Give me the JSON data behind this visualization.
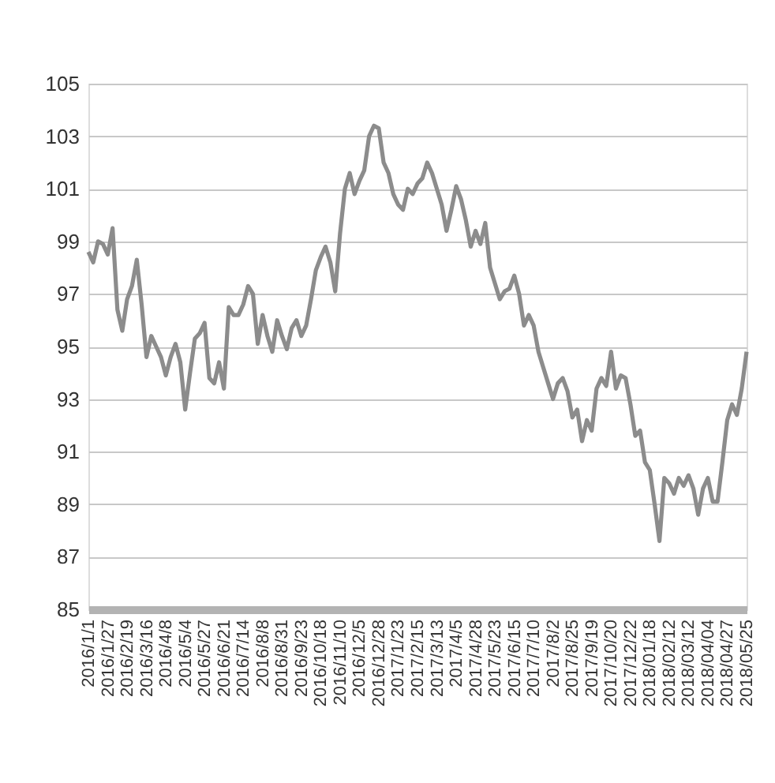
{
  "chart_data": {
    "type": "line",
    "categories": [
      "2016/1/1",
      null,
      null,
      null,
      "2016/1/27",
      null,
      null,
      null,
      "2016/2/19",
      null,
      null,
      null,
      "2016/3/16",
      null,
      null,
      null,
      "2016/4/8",
      null,
      null,
      null,
      "2016/5/4",
      null,
      null,
      null,
      "2016/5/27",
      null,
      null,
      null,
      "2016/6/21",
      null,
      null,
      null,
      "2016/7/14",
      null,
      null,
      null,
      "2016/8/8",
      null,
      null,
      null,
      "2016/8/31",
      null,
      null,
      null,
      "2016/9/23",
      null,
      null,
      null,
      "2016/10/18",
      null,
      null,
      null,
      "2016/11/10",
      null,
      null,
      null,
      "2016/12/5",
      null,
      null,
      null,
      "2016/12/28",
      null,
      null,
      null,
      "2017/1/23",
      null,
      null,
      null,
      "2017/2/15",
      null,
      null,
      null,
      "2017/3/13",
      null,
      null,
      null,
      "2017/4/5",
      null,
      null,
      null,
      "2017/4/28",
      null,
      null,
      null,
      "2017/5/23",
      null,
      null,
      null,
      "2017/6/15",
      null,
      null,
      null,
      "2017/7/10",
      null,
      null,
      null,
      "2017/8/2",
      null,
      null,
      null,
      "2017/8/25",
      null,
      null,
      null,
      "2017/9/19",
      null,
      null,
      null,
      "2017/10/20",
      null,
      null,
      null,
      "2017/12/22",
      null,
      null,
      null,
      "2018/01/18",
      null,
      null,
      null,
      "2018/02/12",
      null,
      null,
      null,
      "2018/03/12",
      null,
      null,
      null,
      "2018/04/04",
      null,
      null,
      null,
      "2018/04/27",
      null,
      null,
      null,
      "2018/05/25"
    ],
    "series": [
      {
        "color": "#8c8c8c",
        "values": [
          98.6,
          98.2,
          99.0,
          98.9,
          98.5,
          99.5,
          96.4,
          95.6,
          96.8,
          97.3,
          98.3,
          96.6,
          94.6,
          95.4,
          95.0,
          94.6,
          93.9,
          94.6,
          95.1,
          94.4,
          92.6,
          94.0,
          95.3,
          95.5,
          95.9,
          93.8,
          93.6,
          94.4,
          93.4,
          96.5,
          96.2,
          96.2,
          96.6,
          97.3,
          97.0,
          95.1,
          96.2,
          95.4,
          94.8,
          96.0,
          95.4,
          94.9,
          95.7,
          96.0,
          95.4,
          95.8,
          96.8,
          97.9,
          98.4,
          98.8,
          98.2,
          97.1,
          99.3,
          101.0,
          101.6,
          100.8,
          101.3,
          101.7,
          103.0,
          103.4,
          103.3,
          102.0,
          101.6,
          100.8,
          100.4,
          100.2,
          101.0,
          100.8,
          101.2,
          101.4,
          102.0,
          101.6,
          101.0,
          100.4,
          99.4,
          100.2,
          101.1,
          100.6,
          99.8,
          98.8,
          99.4,
          98.9,
          99.7,
          98.0,
          97.4,
          96.8,
          97.1,
          97.2,
          97.7,
          97.0,
          95.8,
          96.2,
          95.8,
          94.8,
          94.2,
          93.6,
          93.0,
          93.6,
          93.8,
          93.3,
          92.3,
          92.6,
          91.4,
          92.2,
          91.8,
          93.4,
          93.8,
          93.5,
          94.8,
          93.4,
          93.9,
          93.8,
          92.8,
          91.6,
          91.8,
          90.6,
          90.3,
          89.0,
          87.6,
          90.0,
          89.8,
          89.4,
          90.0,
          89.7,
          90.1,
          89.6,
          88.6,
          89.6,
          90.0,
          89.1,
          89.1,
          90.6,
          92.2,
          92.8,
          92.4,
          93.4,
          94.8
        ]
      }
    ],
    "ylim": [
      85,
      105
    ],
    "yticks": [
      85,
      87,
      89,
      91,
      93,
      95,
      97,
      99,
      101,
      103,
      105
    ],
    "grid": "y",
    "marker": "none",
    "line_style": "solid"
  }
}
